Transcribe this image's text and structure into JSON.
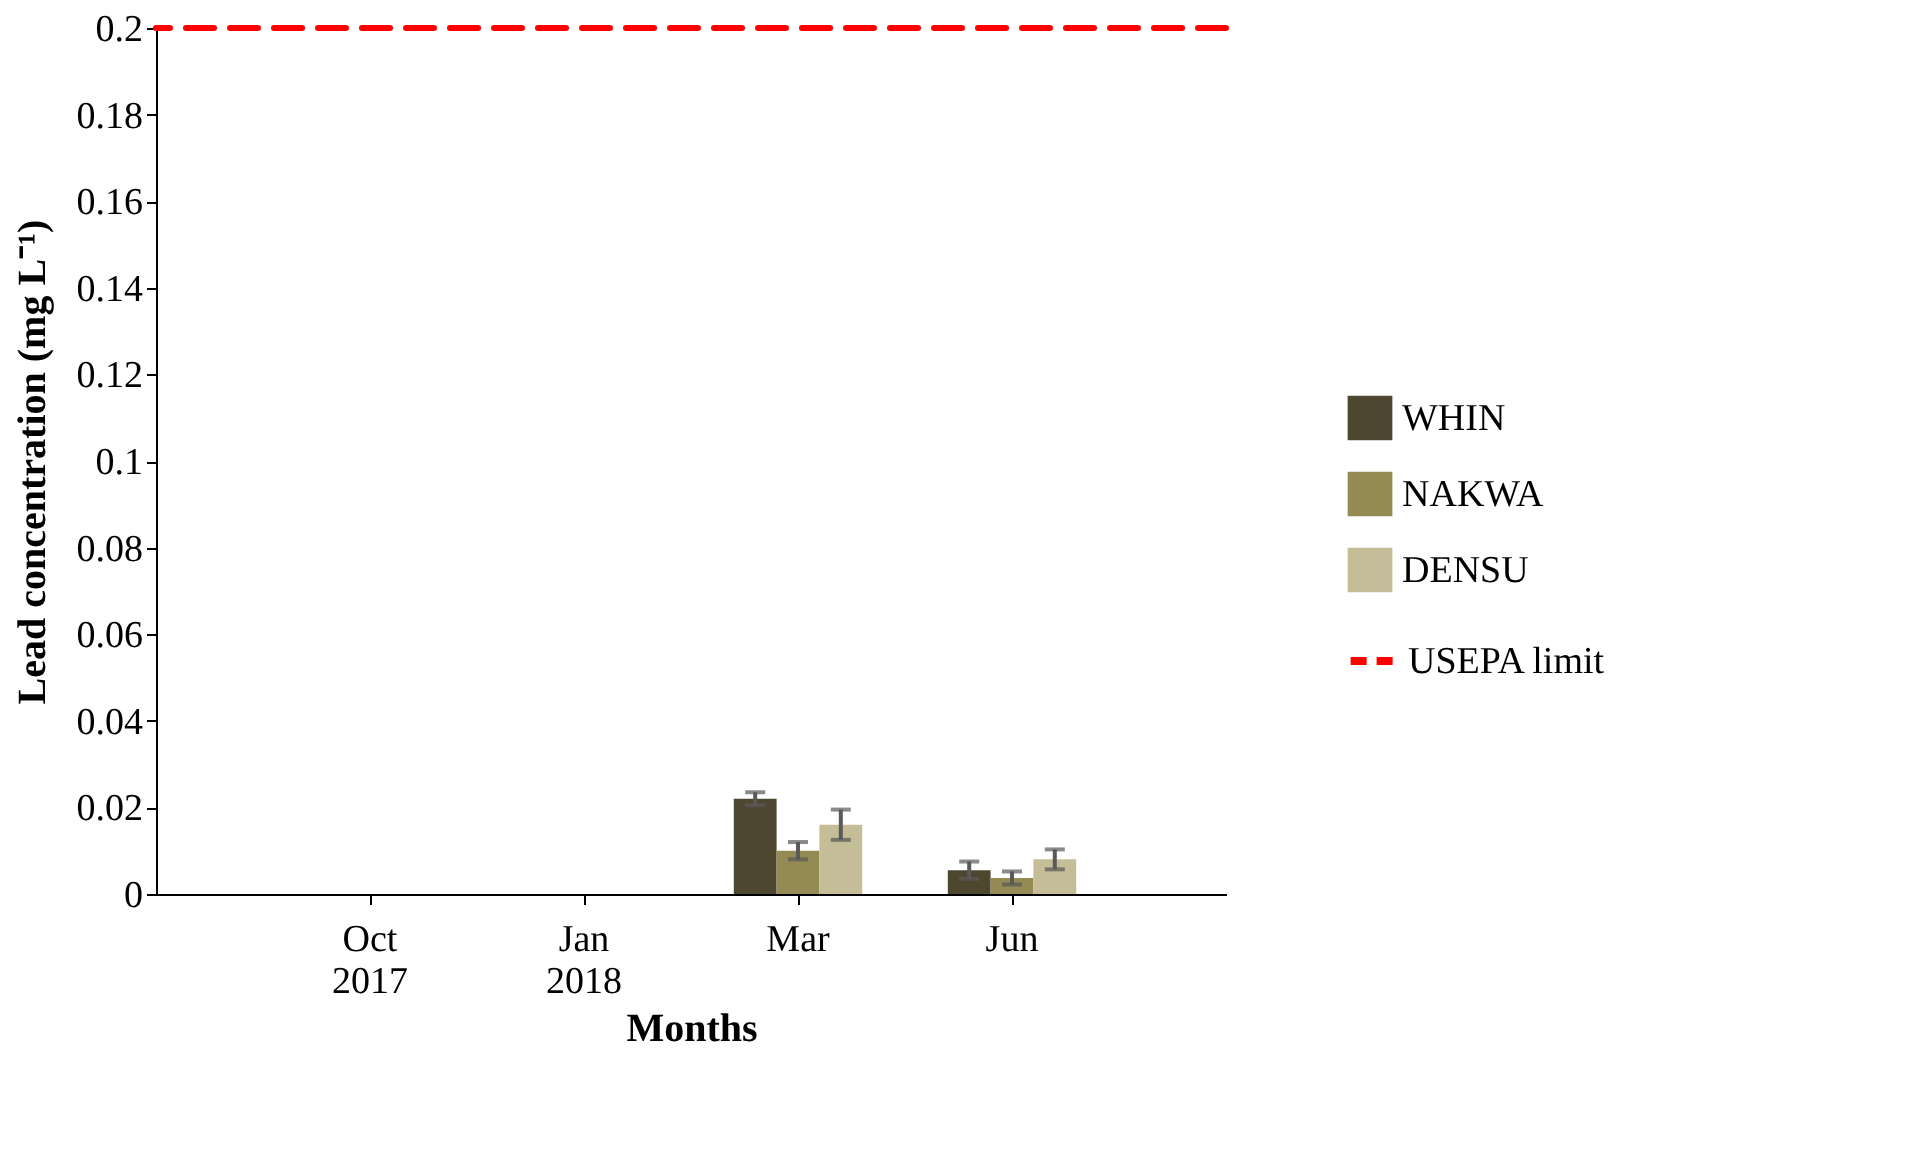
{
  "chart_data": {
    "type": "bar",
    "xlabel": "Months",
    "ylabel": "Lead concentration (mg L⁻¹)",
    "categories": [
      "Oct\n2017",
      "Jan\n2018",
      "Mar",
      "Jun"
    ],
    "series": [
      {
        "name": "WHIN",
        "color": "#4d4730",
        "values": [
          0,
          0,
          0.022,
          0.0055
        ],
        "errors": [
          null,
          null,
          0.0015,
          0.002
        ]
      },
      {
        "name": "NAKWA",
        "color": "#948a54",
        "values": [
          0,
          0,
          0.01,
          0.0037
        ],
        "errors": [
          null,
          null,
          0.002,
          0.0015
        ]
      },
      {
        "name": "DENSU",
        "color": "#c4bd97",
        "values": [
          0,
          0,
          0.016,
          0.008
        ],
        "errors": [
          null,
          null,
          0.0035,
          0.0023
        ]
      }
    ],
    "ylim": [
      0,
      0.2
    ],
    "yticks": [
      0,
      0.02,
      0.04,
      0.06,
      0.08,
      0.1,
      0.12,
      0.14,
      0.16,
      0.18,
      0.2
    ],
    "ref_lines": [
      {
        "axis": "y",
        "value": 0.2,
        "label": "USEPA limit",
        "color": "#ff0000",
        "line_style": "dashed"
      }
    ],
    "grid": false,
    "legend": "right"
  }
}
